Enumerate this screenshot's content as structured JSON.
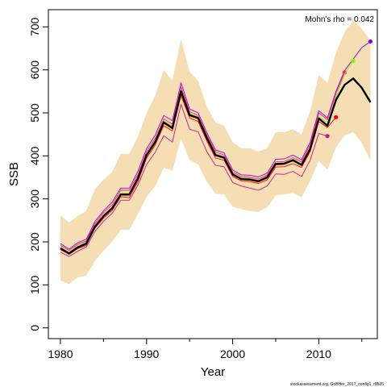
{
  "chart_data": {
    "type": "line",
    "title": "",
    "xlabel": "Year",
    "ylabel": "SSB",
    "xlim": [
      1978.6,
      1981.4
    ],
    "ylim": [
      -25,
      740
    ],
    "x_ticks": [
      1980,
      1990,
      2000,
      2010
    ],
    "y_ticks": [
      0,
      100,
      200,
      300,
      400,
      500,
      600,
      700
    ],
    "annotation": "Mohn's rho = 0.042",
    "footer": "stockassessment.org, GoBHer_2017_config1, r8535",
    "band_color": "#F5DEB3",
    "years": [
      1980,
      1981,
      1982,
      1983,
      1984,
      1985,
      1986,
      1987,
      1988,
      1989,
      1990,
      1991,
      1992,
      1993,
      1994,
      1995,
      1996,
      1997,
      1998,
      1999,
      2000,
      2001,
      2002,
      2003,
      2004,
      2005,
      2006,
      2007,
      2008,
      2009,
      2010,
      2011,
      2012,
      2013,
      2014,
      2015,
      2016
    ],
    "confidence_band": {
      "upper": [
        262,
        245,
        260,
        272,
        322,
        345,
        362,
        405,
        405,
        445,
        500,
        540,
        600,
        575,
        672,
        595,
        575,
        515,
        478,
        470,
        432,
        418,
        418,
        410,
        418,
        455,
        455,
        462,
        450,
        505,
        588,
        570,
        640,
        688,
        715,
        695,
        668
      ],
      "lower": [
        110,
        102,
        117,
        122,
        155,
        180,
        200,
        228,
        228,
        265,
        305,
        330,
        372,
        365,
        440,
        390,
        380,
        340,
        312,
        310,
        282,
        276,
        272,
        270,
        280,
        308,
        310,
        314,
        304,
        342,
        388,
        368,
        420,
        448,
        455,
        430,
        390
      ]
    },
    "series": [
      {
        "color": "#000000",
        "width": 2.4,
        "values": [
          185,
          173,
          187,
          196,
          235,
          260,
          278,
          310,
          310,
          348,
          402,
          432,
          478,
          465,
          550,
          495,
          488,
          442,
          402,
          396,
          357,
          346,
          345,
          341,
          350,
          381,
          382,
          390,
          379,
          416,
          487,
          470,
          530,
          565,
          580,
          558,
          525
        ]
      },
      {
        "color": "#FF0000",
        "width": 0.9,
        "values": [
          182,
          171,
          184,
          192,
          232,
          255,
          273,
          305,
          303,
          340,
          395,
          425,
          470,
          458,
          540,
          488,
          480,
          435,
          395,
          390,
          352,
          342,
          340,
          336,
          344,
          374,
          375,
          382,
          373,
          410,
          480,
          466,
          490
        ],
        "end_marker": true
      },
      {
        "color": "#9400D3",
        "width": 0.9,
        "values": [
          196,
          183,
          198,
          206,
          247,
          272,
          292,
          325,
          325,
          364,
          417,
          448,
          494,
          482,
          570,
          509,
          500,
          454,
          414,
          407,
          367,
          356,
          355,
          351,
          360,
          392,
          393,
          402,
          391,
          432,
          505,
          488,
          550,
          598,
          625,
          652,
          666
        ],
        "end_marker": true
      },
      {
        "color": "#C71585",
        "width": 0.9,
        "values": [
          176,
          166,
          178,
          188,
          224,
          248,
          266,
          297,
          297,
          332,
          380,
          408,
          447,
          432,
          520,
          462,
          456,
          410,
          378,
          375,
          338,
          330,
          325,
          320,
          330,
          358,
          357,
          364,
          352,
          390,
          452,
          446
        ],
        "end_marker": true
      },
      {
        "color": "#FF1493",
        "width": 0.9,
        "values": [
          192,
          180,
          194,
          202,
          242,
          268,
          286,
          320,
          320,
          356,
          410,
          440,
          486,
          474,
          560,
          503,
          494,
          448,
          409,
          402,
          362,
          352,
          350,
          346,
          355,
          386,
          387,
          396,
          386,
          426,
          500,
          484,
          545,
          594
        ],
        "end_marker": true
      },
      {
        "color": "#7CFC00",
        "width": 0.9,
        "values": [
          188,
          176,
          190,
          199,
          238,
          262,
          281,
          314,
          313,
          351,
          405,
          436,
          482,
          470,
          554,
          499,
          490,
          444,
          405,
          398,
          359,
          349,
          347,
          343,
          352,
          383,
          384,
          393,
          382,
          420,
          492,
          477,
          536,
          590,
          621
        ],
        "end_marker": true
      },
      {
        "color": "#FF8C00",
        "width": 0.9,
        "values": [
          184,
          174,
          186,
          195,
          234,
          258,
          276,
          309,
          308,
          345,
          400,
          430,
          475,
          462,
          546,
          492,
          485,
          440,
          400,
          394,
          355,
          345,
          343,
          339,
          348,
          379,
          380,
          388,
          377,
          414,
          485
        ]
      }
    ]
  }
}
